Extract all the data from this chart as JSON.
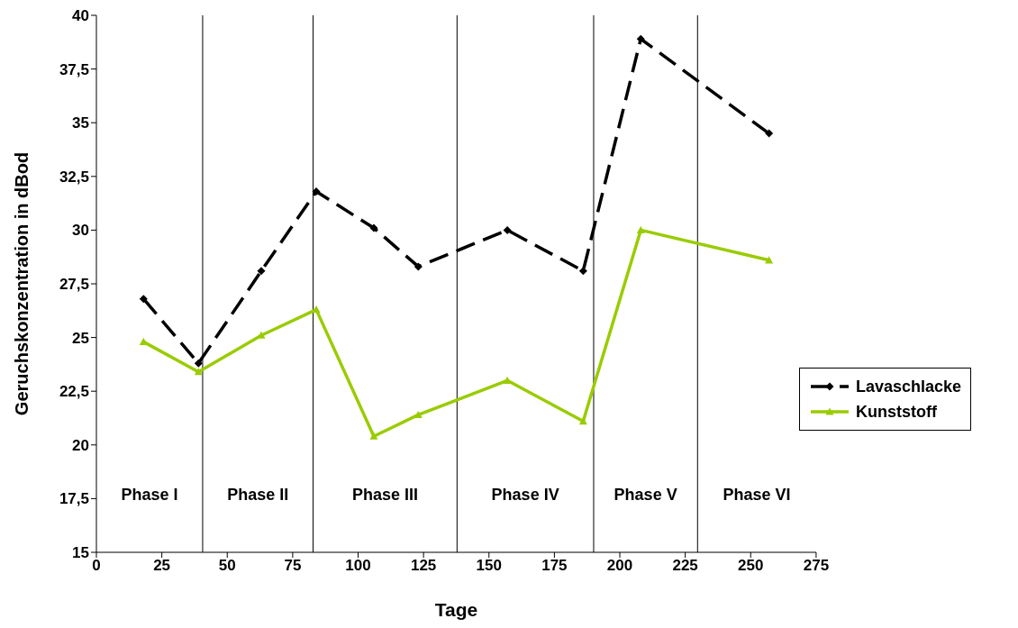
{
  "chart_data": {
    "type": "line",
    "xlabel": "Tage",
    "ylabel": "Geruchskonzentration in dBod",
    "xlim": [
      0,
      275
    ],
    "xticks": [
      0,
      25,
      50,
      75,
      100,
      125,
      150,
      175,
      200,
      225,
      250,
      275
    ],
    "ylim": [
      15,
      40
    ],
    "yticks": [
      15,
      {
        "value": 17.5,
        "label": "17,5"
      },
      20,
      {
        "value": 22.5,
        "label": "22,5"
      },
      25,
      {
        "value": 27.5,
        "label": "27,5"
      },
      30,
      {
        "value": 32.5,
        "label": "32,5"
      },
      35,
      {
        "value": 37.5,
        "label": "37,5"
      },
      40
    ],
    "grid": false,
    "legend": "right",
    "series": [
      {
        "name": "Lavaschlacke",
        "color": "#000000",
        "marker": "diamond",
        "line_style": "dashed",
        "x": [
          18,
          39,
          63,
          84,
          106,
          123,
          157,
          186,
          208,
          257
        ],
        "values": [
          26.8,
          23.8,
          28.1,
          31.8,
          30.1,
          28.3,
          30.0,
          28.1,
          38.9,
          34.5
        ]
      },
      {
        "name": "Kunststoff",
        "color": "#99cc00",
        "marker": "triangle",
        "line_style": "solid",
        "x": [
          18,
          39,
          63,
          84,
          106,
          123,
          157,
          186,
          208,
          257
        ],
        "values": [
          24.8,
          23.4,
          25.1,
          26.3,
          20.4,
          21.4,
          23.0,
          21.1,
          30.0,
          28.6
        ]
      }
    ],
    "ref_lines": [
      {
        "axis": "x",
        "value": 40.6,
        "color": "#000000"
      },
      {
        "axis": "x",
        "value": 82.8,
        "color": "#000000"
      },
      {
        "axis": "x",
        "value": 137.8,
        "color": "#000000"
      },
      {
        "axis": "x",
        "value": 190,
        "color": "#000000"
      },
      {
        "axis": "x",
        "value": 229.7,
        "color": "#000000"
      }
    ],
    "annotations": [
      "Phase I",
      "Phase II",
      "Phase III",
      "Phase IV",
      "Phase V",
      "Phase VI"
    ]
  }
}
